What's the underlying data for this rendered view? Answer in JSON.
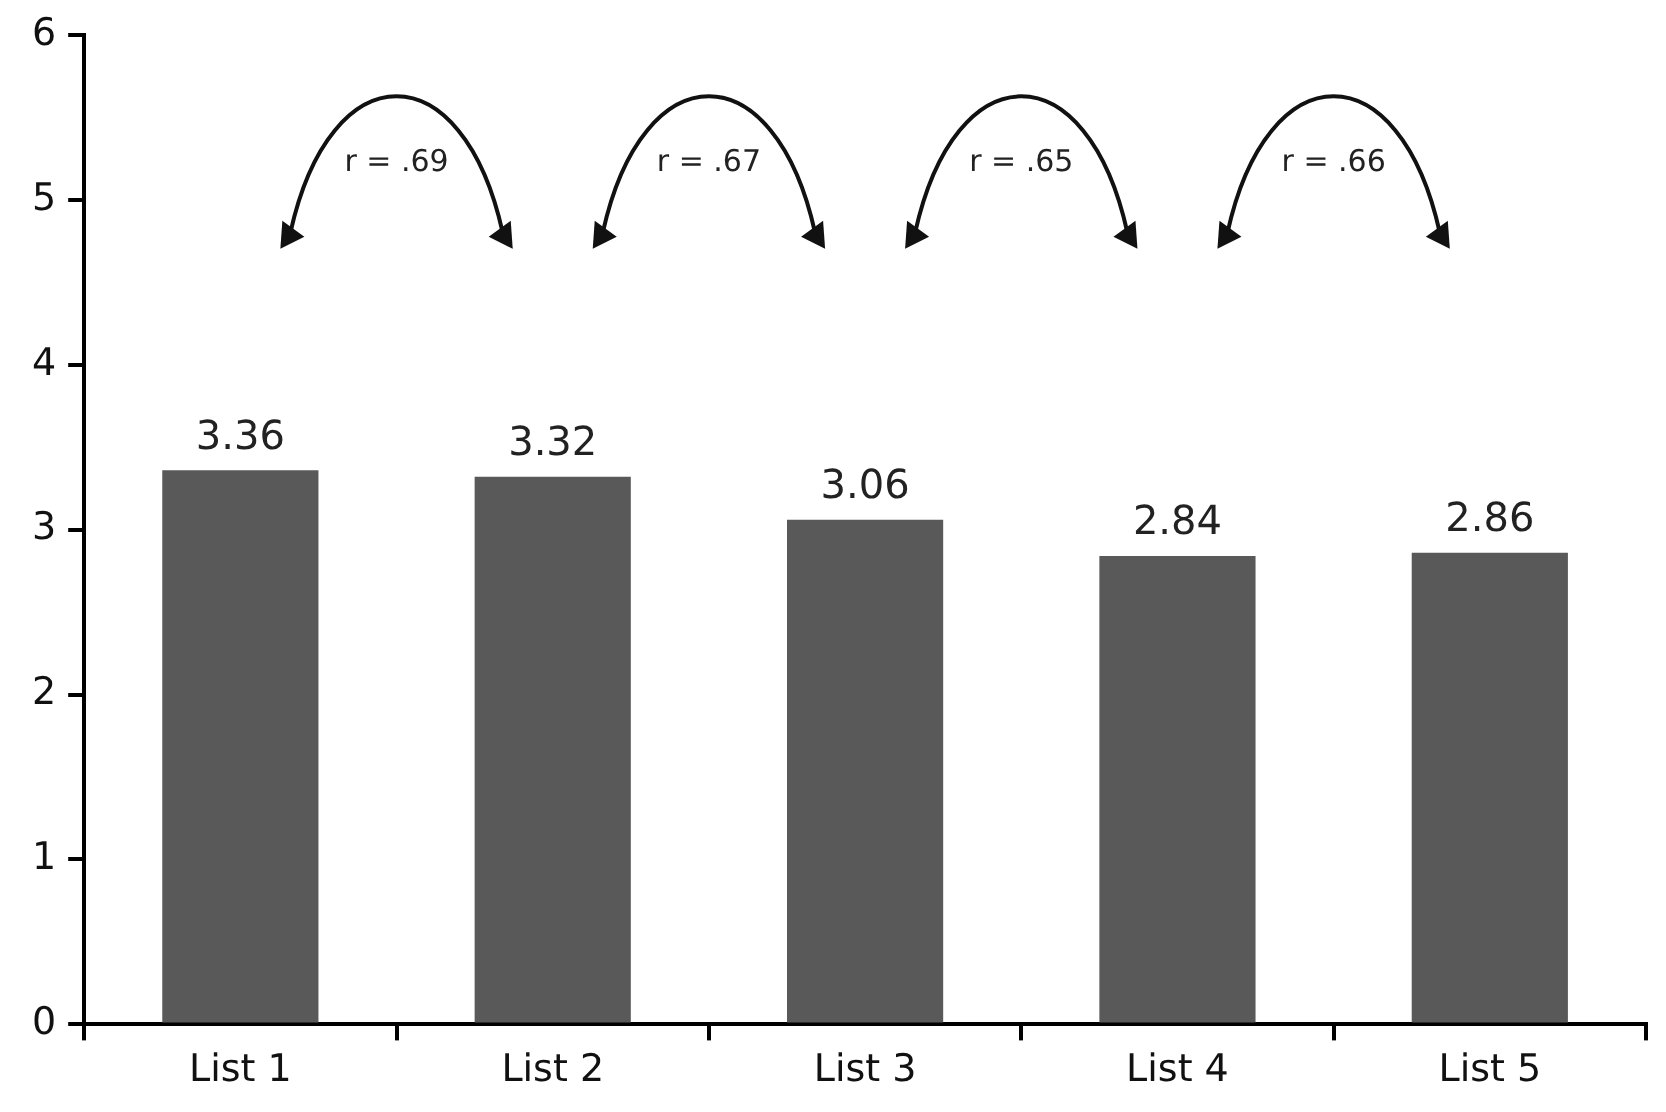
{
  "chart_data": {
    "type": "bar",
    "categories": [
      "List 1",
      "List 2",
      "List 3",
      "List 4",
      "List 5"
    ],
    "values": [
      3.36,
      3.32,
      3.06,
      2.84,
      2.86
    ],
    "color": "#595959",
    "ylim": [
      0,
      6
    ],
    "yticks": [
      0,
      1,
      2,
      3,
      4,
      5,
      6
    ],
    "grid": false,
    "legend": false,
    "data_labels": true,
    "annotations": [
      "r = .69",
      "r = .67",
      "r = .65",
      "r = .66"
    ]
  }
}
